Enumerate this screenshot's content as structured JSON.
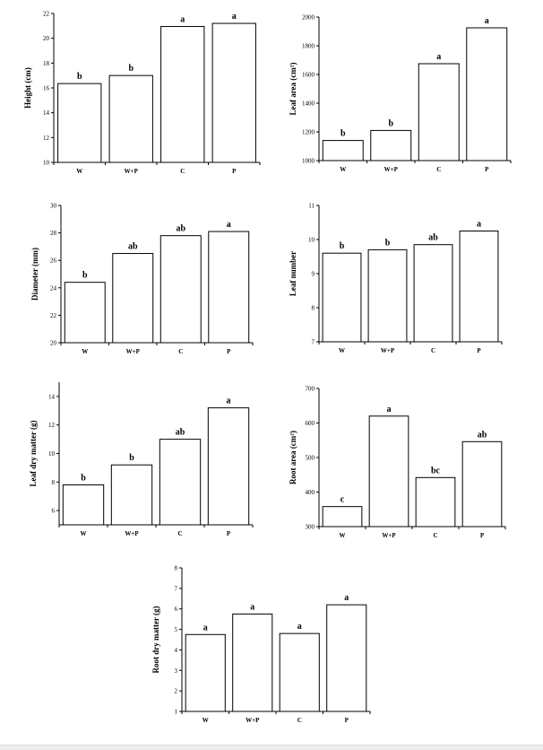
{
  "chart_data": [
    {
      "id": "height",
      "type": "bar",
      "ylabel": "Height (cm)",
      "ylim": [
        10,
        22
      ],
      "yticks": [
        10,
        12,
        14,
        16,
        18,
        20,
        22
      ],
      "categories": [
        "W",
        "W+P",
        "C",
        "P"
      ],
      "values": [
        16.35,
        17.0,
        20.95,
        21.2
      ],
      "significance": [
        "b",
        "b",
        "a",
        "a"
      ]
    },
    {
      "id": "leaf-area",
      "type": "bar",
      "ylabel": "Leaf area (cm²)",
      "ylim": [
        1000,
        2000
      ],
      "yticks": [
        1000,
        1200,
        1400,
        1600,
        1800,
        2000
      ],
      "categories": [
        "W",
        "W+P",
        "C",
        "P"
      ],
      "values": [
        1140,
        1210,
        1675,
        1925
      ],
      "significance": [
        "b",
        "b",
        "a",
        "a"
      ]
    },
    {
      "id": "diameter",
      "type": "bar",
      "ylabel": "Diameter (mm)",
      "ylim": [
        20,
        30
      ],
      "yticks": [
        20,
        22,
        24,
        26,
        28,
        30
      ],
      "categories": [
        "W",
        "W+P",
        "C",
        "P"
      ],
      "values": [
        24.4,
        26.5,
        27.8,
        28.1
      ],
      "significance": [
        "b",
        "ab",
        "ab",
        "a"
      ]
    },
    {
      "id": "leaf-number",
      "type": "bar",
      "ylabel": "Leaf number",
      "ylim": [
        7,
        11
      ],
      "yticks": [
        7,
        8,
        9,
        10,
        11
      ],
      "categories": [
        "W",
        "W+P",
        "C",
        "P"
      ],
      "values": [
        9.6,
        9.7,
        9.85,
        10.25
      ],
      "significance": [
        "b",
        "b",
        "ab",
        "a"
      ]
    },
    {
      "id": "leaf-dry-matter",
      "type": "bar",
      "ylabel": "Leaf dry matter (g)",
      "ylim": [
        5,
        15
      ],
      "yticks": [
        6,
        8,
        10,
        12,
        14
      ],
      "categories": [
        "W",
        "W+P",
        "C",
        "P"
      ],
      "values": [
        7.8,
        9.2,
        11.0,
        13.2
      ],
      "significance": [
        "b",
        "b",
        "ab",
        "a"
      ]
    },
    {
      "id": "root-area",
      "type": "bar",
      "ylabel": "Root area (cm²)",
      "ylim": [
        300,
        700
      ],
      "yticks": [
        300,
        400,
        500,
        600,
        700
      ],
      "categories": [
        "W",
        "W+P",
        "C",
        "P"
      ],
      "values": [
        358,
        620,
        442,
        546
      ],
      "significance": [
        "c",
        "a",
        "bc",
        "ab"
      ]
    },
    {
      "id": "root-dry-matter",
      "type": "bar",
      "ylabel": "Root dry matter (g)",
      "ylim": [
        1,
        8
      ],
      "yticks": [
        1,
        2,
        3,
        4,
        5,
        6,
        7,
        8
      ],
      "categories": [
        "W",
        "W+P",
        "C",
        "P"
      ],
      "values": [
        4.75,
        5.75,
        4.8,
        6.2
      ],
      "significance": [
        "a",
        "a",
        "a",
        "a"
      ]
    }
  ]
}
